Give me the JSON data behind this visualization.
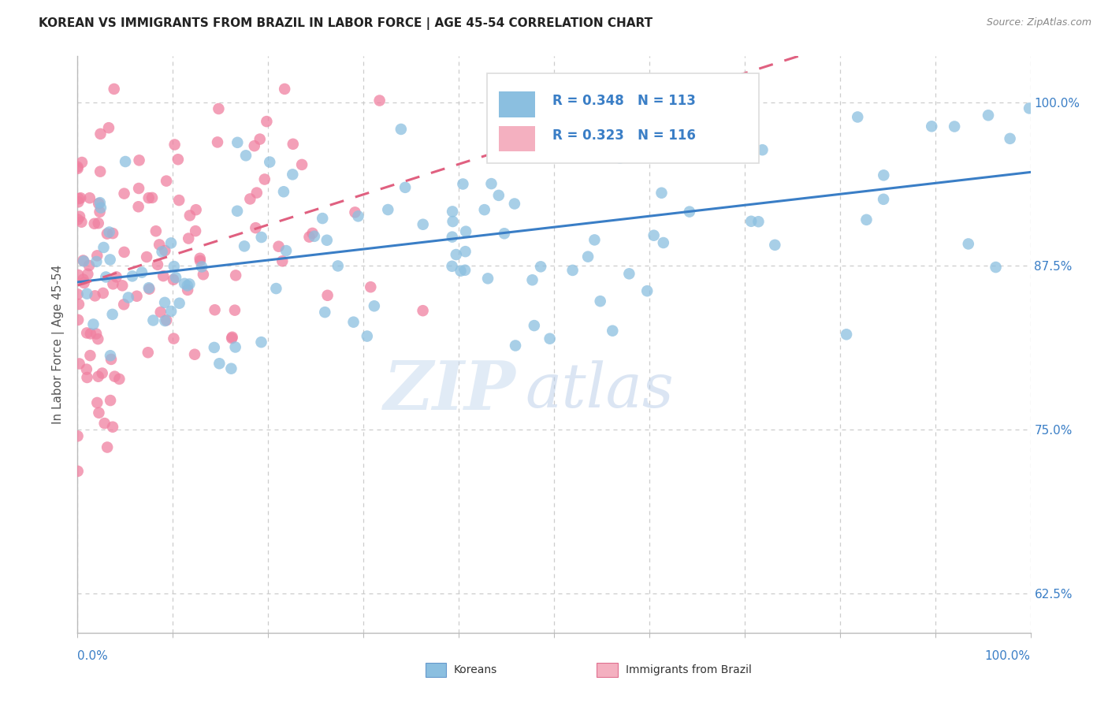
{
  "title": "KOREAN VS IMMIGRANTS FROM BRAZIL IN LABOR FORCE | AGE 45-54 CORRELATION CHART",
  "source": "Source: ZipAtlas.com",
  "ylabel": "In Labor Force | Age 45-54",
  "ytick_labels": [
    "62.5%",
    "75.0%",
    "87.5%",
    "100.0%"
  ],
  "ytick_values": [
    0.625,
    0.75,
    0.875,
    1.0
  ],
  "watermark_zip": "ZIP",
  "watermark_atlas": "atlas",
  "korean_color": "#8bbfe0",
  "brazil_color": "#f080a0",
  "korean_line_color": "#3a7ec6",
  "brazil_line_color": "#e06080",
  "legend_blue_color": "#8bbfe0",
  "legend_pink_color": "#f4b0c0",
  "legend_text_color": "#3a7ec6",
  "tick_label_color": "#3a7ec6",
  "title_color": "#222222",
  "source_color": "#888888",
  "grid_color": "#cccccc",
  "axis_color": "#bbbbbb",
  "background_color": "#ffffff",
  "xmin": 0.0,
  "xmax": 1.0,
  "ymin": 0.595,
  "ymax": 1.035,
  "korean_N": 113,
  "brazil_N": 116,
  "korean_R": 0.348,
  "brazil_R": 0.323,
  "korean_seed": 12,
  "brazil_seed": 5
}
